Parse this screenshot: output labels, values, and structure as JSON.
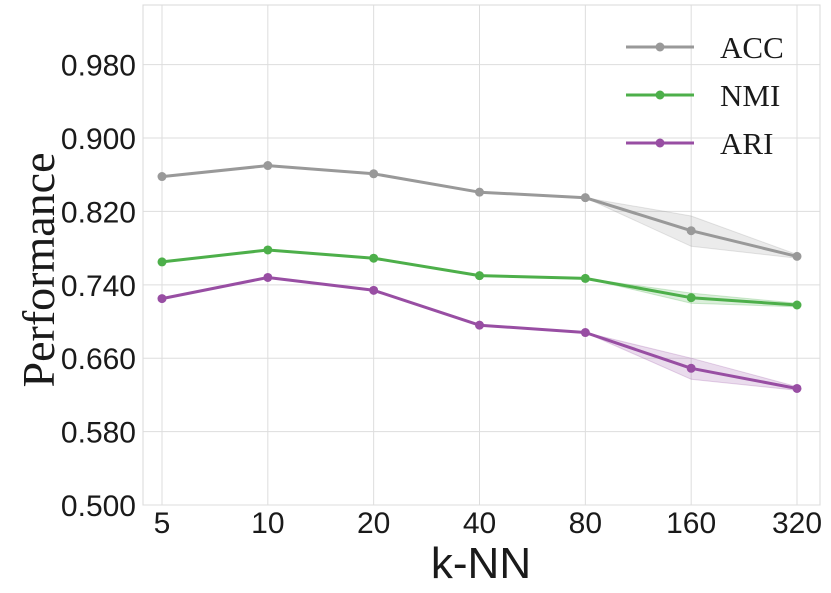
{
  "chart_data": {
    "type": "line",
    "title": "",
    "xlabel": "k-NN",
    "ylabel": "Performance",
    "categories": [
      "5",
      "10",
      "20",
      "40",
      "80",
      "160",
      "320"
    ],
    "yticks": [
      "0.500",
      "0.580",
      "0.660",
      "0.740",
      "0.820",
      "0.900",
      "0.980"
    ],
    "ylim": [
      0.5,
      1.045
    ],
    "grid": true,
    "legend_position": "top-right",
    "series": [
      {
        "name": "ACC",
        "color": "#999999",
        "values": [
          0.858,
          0.87,
          0.861,
          0.841,
          0.835,
          0.799,
          0.771
        ],
        "band_low": [
          0.858,
          0.87,
          0.861,
          0.841,
          0.835,
          0.782,
          0.769
        ],
        "band_high": [
          0.858,
          0.87,
          0.861,
          0.841,
          0.835,
          0.815,
          0.773
        ]
      },
      {
        "name": "NMI",
        "color": "#4daf4a",
        "values": [
          0.765,
          0.778,
          0.769,
          0.75,
          0.747,
          0.726,
          0.718
        ],
        "band_low": [
          0.765,
          0.778,
          0.769,
          0.75,
          0.747,
          0.72,
          0.716
        ],
        "band_high": [
          0.765,
          0.778,
          0.769,
          0.75,
          0.747,
          0.731,
          0.72
        ]
      },
      {
        "name": "ARI",
        "color": "#984ea3",
        "values": [
          0.725,
          0.748,
          0.734,
          0.696,
          0.688,
          0.649,
          0.627
        ],
        "band_low": [
          0.725,
          0.748,
          0.734,
          0.696,
          0.688,
          0.637,
          0.625
        ],
        "band_high": [
          0.725,
          0.748,
          0.734,
          0.696,
          0.688,
          0.66,
          0.629
        ]
      }
    ]
  }
}
